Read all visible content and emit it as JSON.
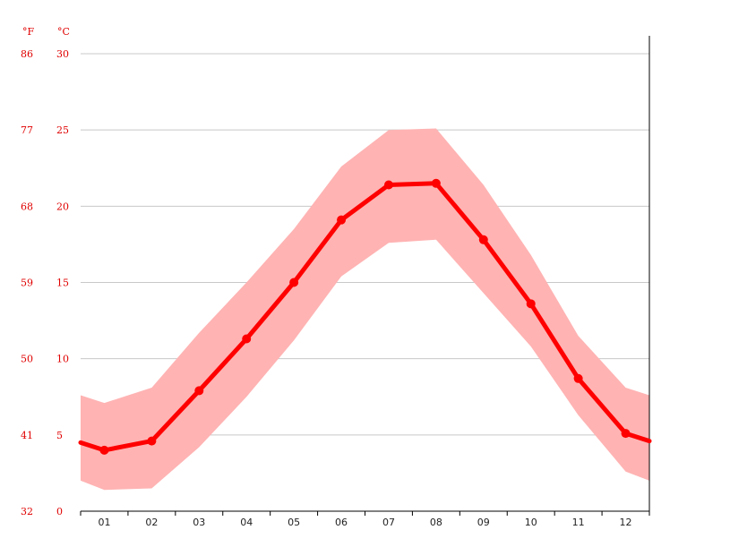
{
  "colors": {
    "line": "#ff0000",
    "band": "#ffb3b3",
    "grid": "#c8c8c8",
    "axis": "#000000",
    "tick_label": "#e00000",
    "x_label": "#222222"
  },
  "chart_data": {
    "type": "line",
    "units": {
      "fahrenheit": "°F",
      "celsius": "°C"
    },
    "categories": [
      "01",
      "02",
      "03",
      "04",
      "05",
      "06",
      "07",
      "08",
      "09",
      "10",
      "11",
      "12"
    ],
    "series": [
      {
        "values": [
          4.0,
          4.6,
          7.9,
          11.3,
          15.0,
          19.1,
          21.4,
          21.5,
          17.8,
          13.6,
          8.7,
          5.1
        ]
      }
    ],
    "band": {
      "low": [
        1.4,
        1.5,
        4.2,
        7.5,
        11.2,
        15.4,
        17.6,
        17.8,
        14.3,
        10.8,
        6.3,
        2.6
      ],
      "high": [
        7.1,
        8.1,
        11.7,
        15.0,
        18.5,
        22.6,
        25.0,
        25.1,
        21.4,
        16.8,
        11.5,
        8.1
      ]
    },
    "series_edges": {
      "start": 4.5,
      "end": 4.6
    },
    "band_edges": {
      "start_low": 2.0,
      "start_high": 7.6,
      "end_low": 2.0,
      "end_high": 7.6
    },
    "ylim": [
      0,
      30
    ],
    "y_ticks_c": [
      "0",
      "5",
      "10",
      "15",
      "20",
      "25",
      "30"
    ],
    "y_ticks_f": [
      "32",
      "41",
      "50",
      "59",
      "68",
      "77",
      "86"
    ],
    "grid": true
  }
}
